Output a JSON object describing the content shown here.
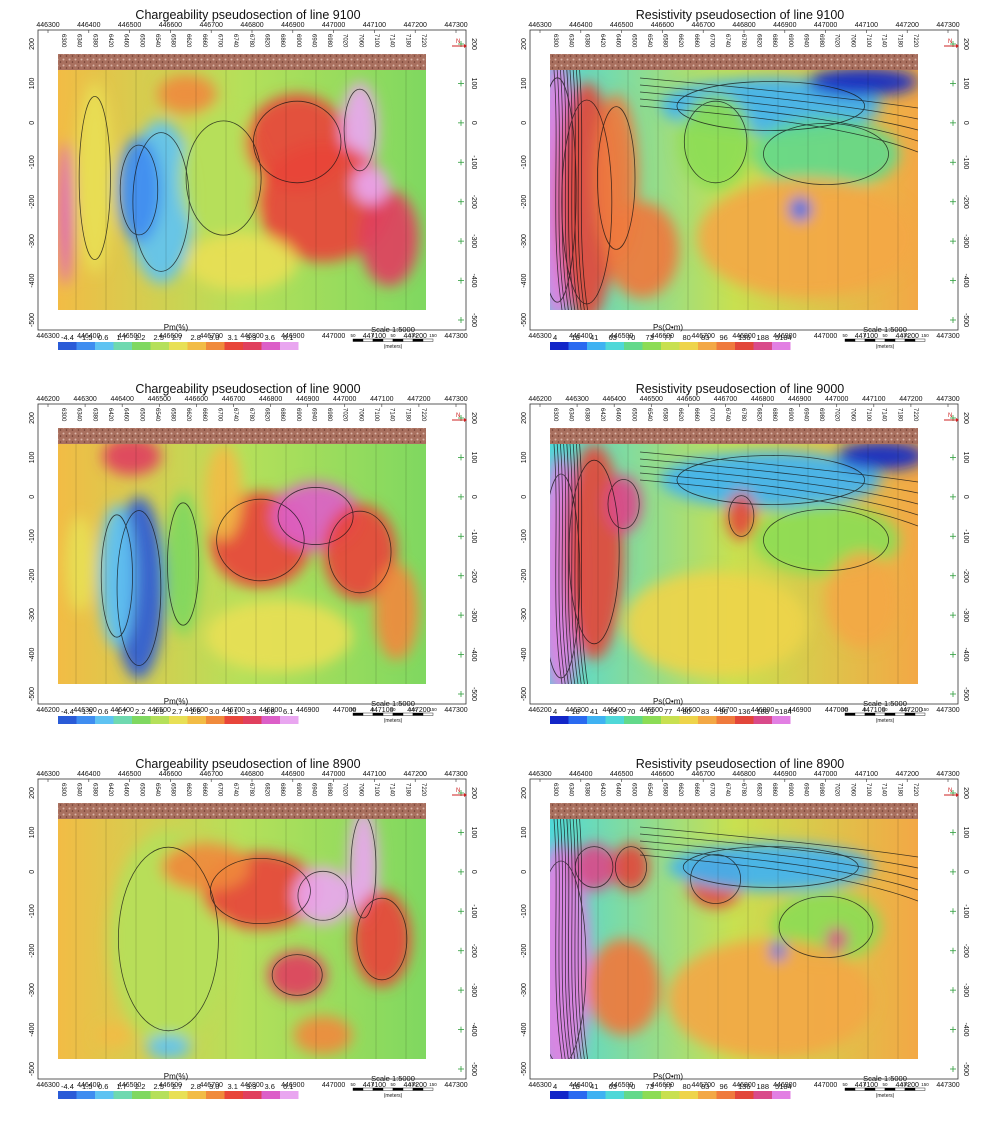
{
  "panels": [
    {
      "id": "charge-9100",
      "kind": "chargeability",
      "title": "Chargeability pseudosection of line 9100",
      "variable": "Pm(%)",
      "scale": "Scale 1:5000",
      "x_ticks": [
        "446300",
        "446400",
        "446500",
        "446600",
        "446700",
        "446800",
        "446900",
        "447000",
        "447100",
        "447200",
        "447300"
      ],
      "stations": [
        "6300",
        "6340",
        "6380",
        "6420",
        "6460",
        "6500",
        "6540",
        "6580",
        "6620",
        "6660",
        "6700",
        "6740",
        "6780",
        "6820",
        "6860",
        "6900",
        "6940",
        "6980",
        "7020",
        "7060",
        "7100",
        "7140",
        "7180",
        "7220"
      ],
      "legend_values": [
        "-4.4",
        "-1.5",
        "0.6",
        "1.7",
        "2.2",
        "2.5",
        "2.7",
        "2.8",
        "3.0",
        "3.1",
        "3.3",
        "3.6",
        "6.1"
      ]
    },
    {
      "id": "resist-9100",
      "kind": "resistivity",
      "title": "Resistivity pseudosection of line 9100",
      "variable": "Ps(Ω•m)",
      "scale": "Scale 1:5000",
      "x_ticks": [
        "446300",
        "446400",
        "446500",
        "446600",
        "446700",
        "446800",
        "446900",
        "447000",
        "447100",
        "447200",
        "447300"
      ],
      "stations": [
        "6300",
        "6340",
        "6380",
        "6420",
        "6460",
        "6500",
        "6540",
        "6580",
        "6620",
        "6660",
        "6700",
        "6740",
        "6780",
        "6820",
        "6860",
        "6900",
        "6940",
        "6980",
        "7020",
        "7060",
        "7100",
        "7140",
        "7180",
        "7220"
      ],
      "legend_values": [
        "4",
        "18",
        "41",
        "63",
        "70",
        "73",
        "77",
        "80",
        "83",
        "96",
        "136",
        "188",
        "5184"
      ]
    },
    {
      "id": "charge-9000",
      "kind": "chargeability",
      "title": "Chargeability pseudosection of line 9000",
      "variable": "Pm(%)",
      "scale": "Scale 1:5000",
      "x_ticks": [
        "446200",
        "446300",
        "446400",
        "446500",
        "446600",
        "446700",
        "446800",
        "446900",
        "447000",
        "447100",
        "447200",
        "447300"
      ],
      "stations": [
        "6300",
        "6340",
        "6380",
        "6420",
        "6460",
        "6500",
        "6540",
        "6580",
        "6620",
        "6660",
        "6700",
        "6740",
        "6780",
        "6820",
        "6860",
        "6900",
        "6940",
        "6980",
        "7020",
        "7060",
        "7100",
        "7140",
        "7180",
        "7220"
      ],
      "legend_values": [
        "-4.4",
        "-1.5",
        "0.6",
        "1.7",
        "2.2",
        "2.5",
        "2.7",
        "2.8",
        "3.0",
        "3.1",
        "3.3",
        "3.6",
        "6.1"
      ]
    },
    {
      "id": "resist-9000",
      "kind": "resistivity",
      "title": "Resistivity pseudosection of line 9000",
      "variable": "Ps(Ω•m)",
      "scale": "Scale 1:5000",
      "x_ticks": [
        "446200",
        "446300",
        "446400",
        "446500",
        "446600",
        "446700",
        "446800",
        "446900",
        "447000",
        "447100",
        "447200",
        "447300"
      ],
      "stations": [
        "6300",
        "6340",
        "6380",
        "6420",
        "6460",
        "6500",
        "6540",
        "6580",
        "6620",
        "6660",
        "6700",
        "6740",
        "6780",
        "6820",
        "6860",
        "6900",
        "6940",
        "6980",
        "7020",
        "7060",
        "7100",
        "7140",
        "7180",
        "7220"
      ],
      "legend_values": [
        "4",
        "18",
        "41",
        "63",
        "70",
        "73",
        "77",
        "80",
        "83",
        "96",
        "136",
        "188",
        "5184"
      ]
    },
    {
      "id": "charge-8900",
      "kind": "chargeability",
      "title": "Chargeability pseudosection of line 8900",
      "variable": "Pm(%)",
      "scale": "Scale 1:5000",
      "x_ticks": [
        "446300",
        "446400",
        "446500",
        "446600",
        "446700",
        "446800",
        "446900",
        "447000",
        "447100",
        "447200",
        "447300"
      ],
      "stations": [
        "6300",
        "6340",
        "6380",
        "6420",
        "6460",
        "6500",
        "6540",
        "6580",
        "6620",
        "6660",
        "6700",
        "6740",
        "6780",
        "6820",
        "6860",
        "6900",
        "6940",
        "6980",
        "7020",
        "7060",
        "7100",
        "7140",
        "7180",
        "7220"
      ],
      "legend_values": [
        "-4.4",
        "-1.5",
        "0.6",
        "1.7",
        "2.2",
        "2.5",
        "2.7",
        "2.8",
        "3.0",
        "3.1",
        "3.3",
        "3.6",
        "6.1"
      ]
    },
    {
      "id": "resist-8900",
      "kind": "resistivity",
      "title": "Resistivity pseudosection of line 8900",
      "variable": "Ps(Ω•m)",
      "scale": "Scale 1:5000",
      "x_ticks": [
        "446300",
        "446400",
        "446500",
        "446600",
        "446700",
        "446800",
        "446900",
        "447000",
        "447100",
        "447200",
        "447300"
      ],
      "stations": [
        "6300",
        "6340",
        "6380",
        "6420",
        "6460",
        "6500",
        "6540",
        "6580",
        "6620",
        "6660",
        "6700",
        "6740",
        "6780",
        "6820",
        "6860",
        "6900",
        "6940",
        "6980",
        "7020",
        "7060",
        "7100",
        "7140",
        "7180",
        "7220"
      ],
      "legend_values": [
        "4",
        "18",
        "41",
        "63",
        "70",
        "73",
        "77",
        "80",
        "83",
        "96",
        "136",
        "188",
        "5184"
      ]
    }
  ],
  "y_ticks": [
    "200",
    "100",
    "0",
    "-100",
    "-200",
    "-300",
    "-400",
    "-500"
  ],
  "scale_bar": {
    "ticks": [
      "50",
      "0",
      "50",
      "100",
      "150"
    ],
    "unit": "(meters)"
  },
  "north_label": "N",
  "palettes": {
    "chargeability": [
      "#2a5bd7",
      "#3f8df0",
      "#5fc3f2",
      "#6fd9b0",
      "#7fd860",
      "#b5e05a",
      "#e8e055",
      "#f2bc45",
      "#f08a3c",
      "#e8453a",
      "#e0405e",
      "#dc5fc8",
      "#e9a6f0"
    ],
    "resistivity": [
      "#1226c8",
      "#2a6af0",
      "#3fb2f2",
      "#4fd8d8",
      "#63d98a",
      "#8cdc55",
      "#c8e050",
      "#eed44a",
      "#f3a845",
      "#ef7a3d",
      "#e2463a",
      "#d94a8a",
      "#e27fe3"
    ]
  },
  "colors": {
    "topo": "#a9705f",
    "frame": "#333333",
    "grid_plus": "#2f9e3c",
    "contour": "#111111"
  }
}
